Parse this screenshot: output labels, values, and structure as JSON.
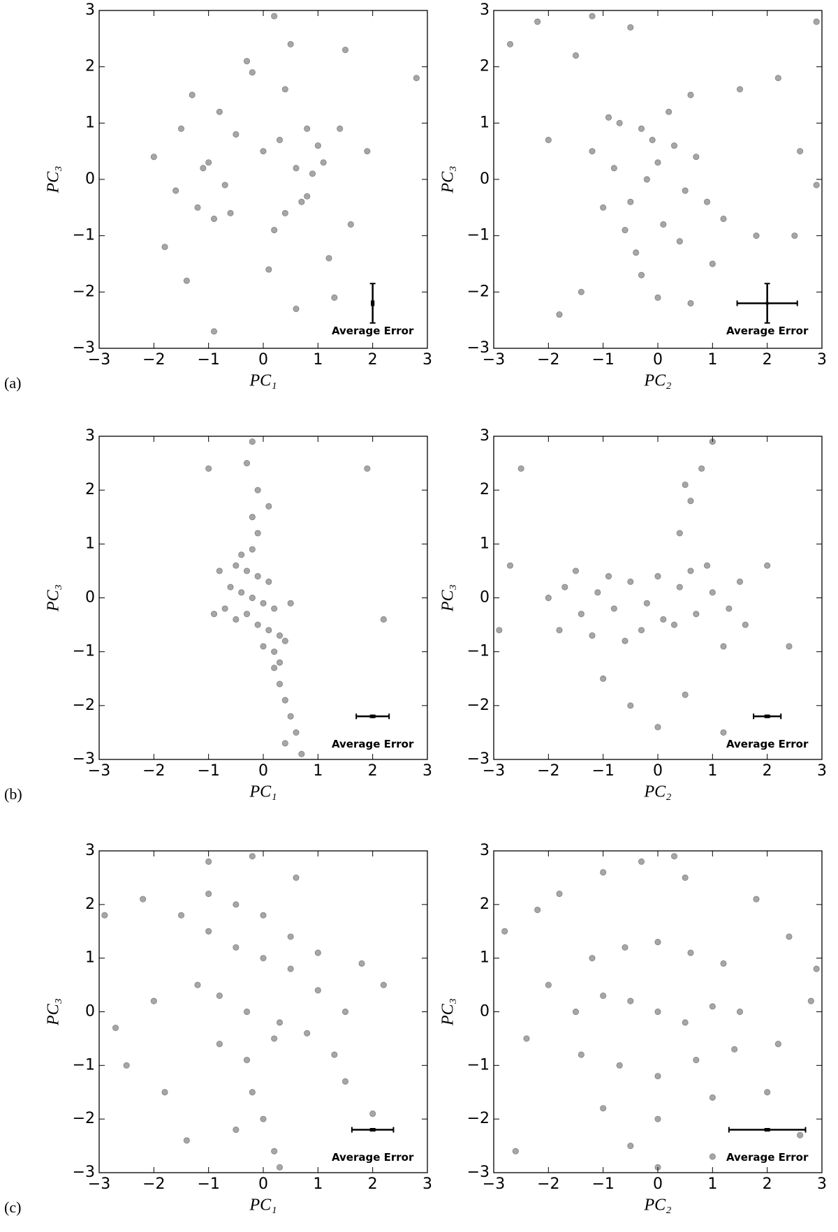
{
  "panel_labels": [
    "(a)",
    "(b)",
    "(c)"
  ],
  "chart_data": [
    {
      "type": "scatter",
      "x_label": "PC₁",
      "y_label": "PC₃",
      "color": "#000000",
      "alpha": 0.35,
      "xlim": [
        -3,
        3
      ],
      "ylim": [
        -3,
        3
      ],
      "xticks": [
        {
          "value": -3,
          "label": "−3"
        },
        {
          "value": -2,
          "label": "−2"
        },
        {
          "value": -1,
          "label": "−1"
        },
        0,
        1,
        2,
        3
      ],
      "yticks": [
        {
          "value": -3,
          "label": "−3"
        },
        {
          "value": -2,
          "label": "−2"
        },
        {
          "value": -1,
          "label": "−1"
        },
        0,
        1,
        2,
        3
      ],
      "x": [
        -2,
        -1.8,
        -1.5,
        -1.2,
        -1,
        -0.8,
        -0.6,
        -0.3,
        0,
        0.2,
        0.4,
        0.6,
        0.8,
        1,
        1.2,
        1.4,
        1.6,
        1.9,
        -1.6,
        -1.3,
        -0.9,
        -0.5,
        0.1,
        0.5,
        0.9,
        1.3,
        -1.1,
        -0.7,
        0.3,
        0.7,
        1.1,
        0.6,
        -0.2,
        0.4,
        -1.4,
        2.8,
        0.8,
        -0.9,
        1.5,
        0.2
      ],
      "values": [
        0.4,
        -1.2,
        0.9,
        -0.5,
        0.3,
        1.2,
        -0.6,
        2.1,
        0.5,
        -0.9,
        1.6,
        0.2,
        -0.3,
        0.6,
        -1.4,
        0.9,
        -0.8,
        0.5,
        -0.2,
        1.5,
        -0.7,
        0.8,
        -1.6,
        2.4,
        0.1,
        -2.1,
        0.2,
        -0.1,
        0.7,
        -0.4,
        0.3,
        -2.3,
        1.9,
        -0.6,
        -1.8,
        1.8,
        0.9,
        -2.7,
        2.3,
        2.9
      ],
      "error_bar": {
        "x": 2,
        "y": -2.2,
        "xerr": 0.02,
        "yerr": 0.35,
        "label": "Average Error"
      }
    },
    {
      "type": "scatter",
      "x_label": "PC₂",
      "y_label": "PC₃",
      "color": "#000000",
      "alpha": 0.35,
      "xlim": [
        -3,
        3
      ],
      "ylim": [
        -3,
        3
      ],
      "xticks": [
        {
          "value": -3,
          "label": "−3"
        },
        {
          "value": -2,
          "label": "−2"
        },
        {
          "value": -1,
          "label": "−1"
        },
        0,
        1,
        2,
        3
      ],
      "yticks": [
        {
          "value": -3,
          "label": "−3"
        },
        {
          "value": -2,
          "label": "−2"
        },
        {
          "value": -1,
          "label": "−1"
        },
        0,
        1,
        2,
        3
      ],
      "x": [
        -0.2,
        0,
        -0.5,
        0.3,
        -0.8,
        0.5,
        -0.3,
        0.1,
        -0.6,
        0.7,
        -1,
        0.9,
        0.2,
        -0.4,
        0.4,
        -0.1,
        -1.2,
        1.2,
        -0.7,
        0.6,
        -2.7,
        -2.2,
        -1.5,
        -0.5,
        1.5,
        2.2,
        2.6,
        2.9,
        -1.8,
        -1.4,
        -0.3,
        0.6,
        1.8,
        2.5,
        -0.9,
        0,
        1,
        -2,
        -1.2,
        2.9
      ],
      "values": [
        0,
        0.3,
        -0.4,
        0.6,
        0.2,
        -0.2,
        0.9,
        -0.8,
        -0.9,
        0.4,
        -0.5,
        -0.4,
        1.2,
        -1.3,
        -1.1,
        0.7,
        0.5,
        -0.7,
        1,
        1.5,
        2.4,
        2.8,
        2.2,
        2.7,
        1.6,
        1.8,
        0.5,
        -0.1,
        -2.4,
        -2,
        -1.7,
        -2.2,
        -1,
        -1,
        1.1,
        -2.1,
        -1.5,
        0.7,
        2.9,
        2.8
      ],
      "error_bar": {
        "x": 2,
        "y": -2.2,
        "xerr": 0.55,
        "yerr": 0.35,
        "label": "Average Error"
      }
    },
    {
      "type": "scatter",
      "x_label": "PC₁",
      "y_label": "PC₃",
      "color": "#000000",
      "alpha": 0.35,
      "xlim": [
        -3,
        3
      ],
      "ylim": [
        -3,
        3
      ],
      "xticks": [
        {
          "value": -3,
          "label": "−3"
        },
        {
          "value": -2,
          "label": "−2"
        },
        {
          "value": -1,
          "label": "−1"
        },
        0,
        1,
        2,
        3
      ],
      "yticks": [
        {
          "value": -3,
          "label": "−3"
        },
        {
          "value": -2,
          "label": "−2"
        },
        {
          "value": -1,
          "label": "−1"
        },
        0,
        1,
        2,
        3
      ],
      "x": [
        -0.5,
        -0.3,
        -0.1,
        0.1,
        -0.6,
        -0.4,
        -0.2,
        0,
        0.2,
        -0.7,
        -0.5,
        -0.3,
        -0.1,
        0.1,
        0.3,
        -0.4,
        -0.2,
        0,
        0.2,
        0.4,
        -0.2,
        -0.1,
        -0.3,
        -0.2,
        -0.1,
        0.2,
        0.3,
        0.4,
        0.5,
        0.6,
        0.4,
        0.7,
        -0.8,
        -0.9,
        0.3,
        1.9,
        2.2,
        -1,
        0.1,
        0.5
      ],
      "values": [
        0.6,
        0.5,
        0.4,
        0.3,
        0.2,
        0.1,
        0,
        -0.1,
        -0.2,
        -0.2,
        -0.4,
        -0.3,
        -0.5,
        -0.6,
        -0.7,
        0.8,
        0.9,
        -0.9,
        -1,
        -0.8,
        1.5,
        2,
        2.5,
        2.9,
        1.2,
        -1.3,
        -1.6,
        -1.9,
        -2.2,
        -2.5,
        -2.7,
        -2.9,
        0.5,
        -0.3,
        -1.2,
        2.4,
        -0.4,
        2.4,
        1.7,
        -0.1
      ],
      "error_bar": {
        "x": 2,
        "y": -2.2,
        "xerr": 0.3,
        "yerr": 0.02,
        "label": "Average Error"
      }
    },
    {
      "type": "scatter",
      "x_label": "PC₂",
      "y_label": "PC₃",
      "color": "#000000",
      "alpha": 0.35,
      "xlim": [
        -3,
        3
      ],
      "ylim": [
        -3,
        3
      ],
      "xticks": [
        {
          "value": -3,
          "label": "−3"
        },
        {
          "value": -2,
          "label": "−2"
        },
        {
          "value": -1,
          "label": "−1"
        },
        0,
        1,
        2,
        3
      ],
      "yticks": [
        {
          "value": -3,
          "label": "−3"
        },
        {
          "value": -2,
          "label": "−2"
        },
        {
          "value": -1,
          "label": "−1"
        },
        0,
        1,
        2,
        3
      ],
      "x": [
        -2,
        -1.7,
        -1.4,
        -1.1,
        -0.8,
        -0.5,
        -0.2,
        0.1,
        0.4,
        0.7,
        1,
        1.3,
        1.6,
        -1.8,
        -1.2,
        -0.6,
        0,
        0.6,
        1.2,
        -1.5,
        -0.9,
        -0.3,
        0.3,
        0.9,
        1.5,
        0.4,
        0.6,
        0.8,
        1,
        0.5,
        -1,
        -0.5,
        0,
        0.5,
        1.2,
        -2.7,
        -2.9,
        2,
        2.4,
        -2.5
      ],
      "values": [
        0,
        0.2,
        -0.3,
        0.1,
        -0.2,
        0.3,
        -0.1,
        -0.4,
        0.2,
        -0.3,
        0.1,
        -0.2,
        -0.5,
        -0.6,
        -0.7,
        -0.8,
        0.4,
        0.5,
        -0.9,
        0.5,
        0.4,
        -0.6,
        -0.5,
        0.6,
        0.3,
        1.2,
        1.8,
        2.4,
        2.9,
        2.1,
        -1.5,
        -2,
        -2.4,
        -1.8,
        -2.5,
        0.6,
        -0.6,
        0.6,
        -0.9,
        2.4
      ],
      "error_bar": {
        "x": 2,
        "y": -2.2,
        "xerr": 0.25,
        "yerr": 0.02,
        "label": "Average Error"
      }
    },
    {
      "type": "scatter",
      "x_label": "PC₁",
      "y_label": "PC₃",
      "color": "#000000",
      "alpha": 0.35,
      "xlim": [
        -3,
        3
      ],
      "ylim": [
        -3,
        3
      ],
      "xticks": [
        {
          "value": -3,
          "label": "−3"
        },
        {
          "value": -2,
          "label": "−2"
        },
        {
          "value": -1,
          "label": "−1"
        },
        0,
        1,
        2,
        3
      ],
      "yticks": [
        {
          "value": -3,
          "label": "−3"
        },
        {
          "value": -2,
          "label": "−2"
        },
        {
          "value": -1,
          "label": "−1"
        },
        0,
        1,
        2,
        3
      ],
      "x": [
        -1,
        -0.5,
        0,
        0.5,
        1,
        1.5,
        -1.2,
        -0.8,
        -0.3,
        0.3,
        0.8,
        1.3,
        -1.5,
        -1,
        -0.5,
        0,
        0.5,
        1,
        -0.8,
        -0.3,
        0.2,
        -0.2,
        0,
        0.2,
        -0.5,
        1.8,
        -2,
        -2.5,
        -2.9,
        -1.8,
        2.2,
        1.5,
        -1,
        -0.2,
        0.6,
        -2.2,
        2,
        -1.4,
        0.3,
        -2.7
      ],
      "values": [
        1.5,
        1.2,
        1,
        0.8,
        0.4,
        0,
        0.5,
        0.3,
        0,
        -0.2,
        -0.4,
        -0.8,
        1.8,
        2.2,
        2,
        1.8,
        1.4,
        1.1,
        -0.6,
        -0.9,
        -0.5,
        -1.5,
        -2,
        -2.6,
        -2.2,
        0.9,
        0.2,
        -1,
        1.8,
        -1.5,
        0.5,
        -1.3,
        2.8,
        2.9,
        2.5,
        2.1,
        -1.9,
        -2.4,
        -2.9,
        -0.3
      ],
      "error_bar": {
        "x": 2,
        "y": -2.2,
        "xerr": 0.38,
        "yerr": 0.02,
        "label": "Average Error"
      }
    },
    {
      "type": "scatter",
      "x_label": "PC₂",
      "y_label": "PC₃",
      "color": "#000000",
      "alpha": 0.35,
      "xlim": [
        -3,
        3
      ],
      "ylim": [
        -3,
        3
      ],
      "xticks": [
        {
          "value": -3,
          "label": "−3"
        },
        {
          "value": -2,
          "label": "−2"
        },
        {
          "value": -1,
          "label": "−1"
        },
        0,
        1,
        2,
        3
      ],
      "yticks": [
        {
          "value": -3,
          "label": "−3"
        },
        {
          "value": -2,
          "label": "−2"
        },
        {
          "value": -1,
          "label": "−1"
        },
        0,
        1,
        2,
        3
      ],
      "x": [
        -1.5,
        -1,
        -0.5,
        0,
        0.5,
        1,
        1.5,
        -1.2,
        -0.6,
        0,
        0.6,
        1.2,
        -1.4,
        -0.7,
        0,
        0.7,
        1.4,
        -1,
        0,
        1,
        -2,
        -2.4,
        -2.8,
        2,
        2.4,
        2.8,
        -1.8,
        1.8,
        -0.3,
        0.3,
        -2.6,
        2.6,
        -1,
        1,
        0,
        -2.2,
        2.2,
        -0.5,
        0.5,
        2.9
      ],
      "values": [
        0,
        0.3,
        0.2,
        0,
        -0.2,
        0.1,
        0,
        1,
        1.2,
        1.3,
        1.1,
        0.9,
        -0.8,
        -1,
        -1.2,
        -0.9,
        -0.7,
        -1.8,
        -2,
        -1.6,
        0.5,
        -0.5,
        1.5,
        -1.5,
        1.4,
        0.2,
        2.2,
        2.1,
        2.8,
        2.9,
        -2.6,
        -2.3,
        2.6,
        -2.7,
        -2.9,
        1.9,
        -0.6,
        -2.5,
        2.5,
        0.8
      ],
      "error_bar": {
        "x": 2,
        "y": -2.2,
        "xerr": 0.7,
        "yerr": 0.02,
        "label": "Average Error"
      }
    }
  ]
}
